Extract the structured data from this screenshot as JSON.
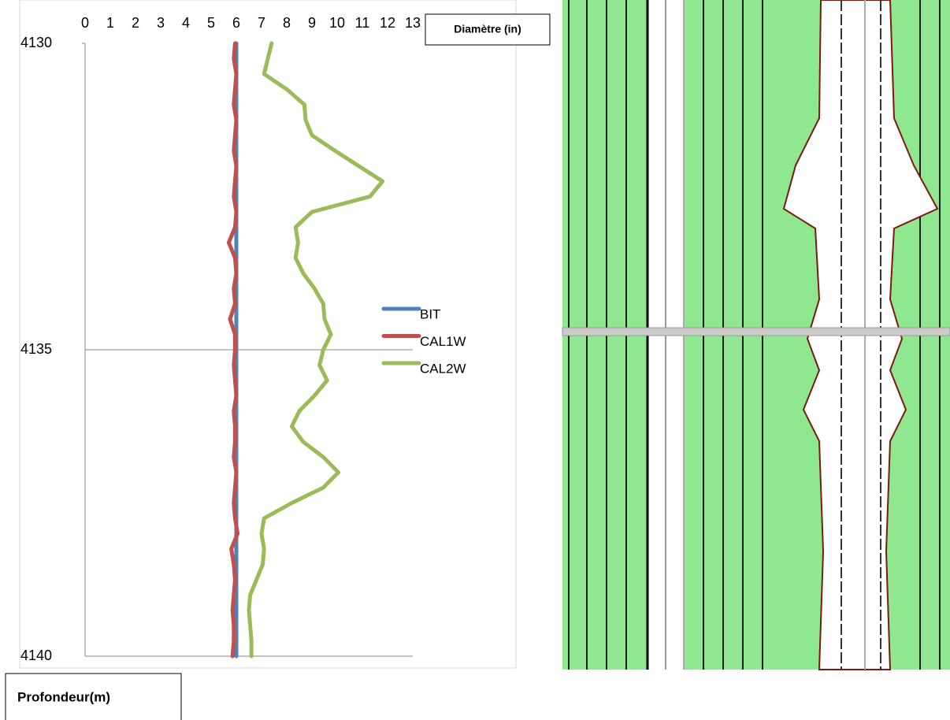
{
  "chart_data": {
    "type": "line",
    "x_label": "Diamètre (in)",
    "y_label": "Profondeur(m)",
    "xlim": [
      0,
      13
    ],
    "xticks": [
      0,
      1,
      2,
      3,
      4,
      5,
      6,
      7,
      8,
      9,
      10,
      11,
      12,
      13
    ],
    "ylim": [
      4130,
      4140
    ],
    "yticks": [
      4130,
      4135,
      4140
    ],
    "y_reversed": true,
    "grid": true,
    "y": [
      4130,
      4130.25,
      4130.5,
      4130.75,
      4131,
      4131.25,
      4131.5,
      4131.75,
      4132,
      4132.25,
      4132.5,
      4132.75,
      4133,
      4133.25,
      4133.5,
      4133.75,
      4134,
      4134.25,
      4134.5,
      4134.75,
      4135,
      4135.25,
      4135.5,
      4135.75,
      4136,
      4136.25,
      4136.5,
      4136.75,
      4137,
      4137.25,
      4137.5,
      4137.75,
      4138,
      4138.25,
      4138.5,
      4138.75,
      4139,
      4139.25,
      4139.5,
      4139.75,
      4140
    ],
    "series": [
      {
        "name": "BIT",
        "color": "#4f81bd",
        "values": [
          6,
          6,
          6,
          6,
          6,
          6,
          6,
          6,
          6,
          6,
          6,
          6,
          6,
          6,
          6,
          6,
          6,
          6,
          6,
          6,
          6,
          6,
          6,
          6,
          6,
          6,
          6,
          6,
          6,
          6,
          6,
          6,
          6,
          6,
          6,
          6,
          6,
          6,
          6,
          6,
          6
        ]
      },
      {
        "name": "CAL1W",
        "color": "#c0504d",
        "values": [
          5.95,
          5.9,
          6.0,
          5.95,
          5.9,
          6.0,
          5.95,
          5.9,
          6.0,
          5.95,
          5.9,
          6.0,
          5.95,
          5.7,
          5.95,
          6.0,
          5.9,
          5.95,
          5.75,
          5.95,
          5.95,
          5.9,
          5.95,
          6.0,
          5.9,
          5.95,
          5.95,
          5.9,
          6.0,
          5.95,
          5.9,
          5.95,
          6.05,
          5.8,
          5.9,
          5.95,
          5.9,
          5.85,
          5.9,
          5.9,
          5.85
        ]
      },
      {
        "name": "CAL2W",
        "color": "#9bbb59",
        "values": [
          7.4,
          7.25,
          7.1,
          8.0,
          8.7,
          8.75,
          9.0,
          9.9,
          10.85,
          11.8,
          11.3,
          9.0,
          8.35,
          8.45,
          8.35,
          8.65,
          9.1,
          9.45,
          9.5,
          9.75,
          9.45,
          9.3,
          9.6,
          9.1,
          8.5,
          8.2,
          8.65,
          9.45,
          10.05,
          9.45,
          8.2,
          7.1,
          7.0,
          7.1,
          7.05,
          6.8,
          6.55,
          6.5,
          6.55,
          6.6,
          6.6
        ]
      }
    ]
  }
}
